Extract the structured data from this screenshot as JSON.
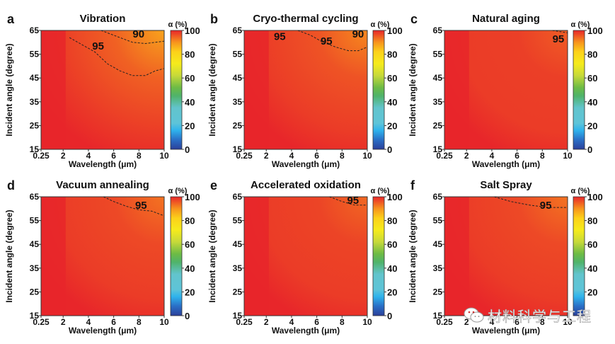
{
  "chart_data": [
    {
      "type": "heatmap",
      "panel_label": "a",
      "title": "Vibration",
      "xlabel": "Wavelength (μm)",
      "ylabel": "Incident angle (degree)",
      "xticks": [
        "0.25",
        "2",
        "4",
        "6",
        "8",
        "10"
      ],
      "yticks": [
        "15",
        "25",
        "35",
        "45",
        "55",
        "65"
      ],
      "xlim": [
        0.25,
        10
      ],
      "ylim": [
        15,
        65
      ],
      "colorbar": {
        "label": "α (%)",
        "ticks": [
          "0",
          "20",
          "40",
          "60",
          "80",
          "100"
        ],
        "range": [
          0,
          100
        ]
      },
      "contours": [
        {
          "level": 95,
          "label": "95",
          "points": [
            [
              2.5,
              62
            ],
            [
              3.5,
              59
            ],
            [
              4.5,
              56
            ],
            [
              5.5,
              51
            ],
            [
              6.5,
              48
            ],
            [
              7.5,
              46
            ],
            [
              8.5,
              46
            ],
            [
              9.3,
              48
            ],
            [
              10,
              49
            ]
          ]
        },
        {
          "level": 90,
          "label": "90",
          "points": [
            [
              5,
              65
            ],
            [
              6.5,
              62
            ],
            [
              7.5,
              60
            ],
            [
              8.5,
              59.5
            ],
            [
              9.3,
              60
            ],
            [
              10,
              60.5
            ]
          ]
        }
      ],
      "labels_at": {
        "95": [
          4.3,
          57
        ],
        "90": [
          7.5,
          62
        ]
      },
      "min_alpha_top_right": 88
    },
    {
      "type": "heatmap",
      "panel_label": "b",
      "title": "Cryo-thermal cycling",
      "xlabel": "Wavelength (μm)",
      "ylabel": "Incident angle (degree)",
      "xticks": [
        "0.25",
        "2",
        "4",
        "6",
        "8",
        "10"
      ],
      "yticks": [
        "15",
        "25",
        "35",
        "45",
        "55",
        "65"
      ],
      "xlim": [
        0.25,
        10
      ],
      "ylim": [
        15,
        65
      ],
      "colorbar": {
        "label": "α (%)",
        "ticks": [
          "0",
          "20",
          "40",
          "60",
          "80",
          "100"
        ],
        "range": [
          0,
          100
        ]
      },
      "contours": [
        {
          "level": 95,
          "label": "95",
          "points": [
            [
              4.5,
              65
            ],
            [
              5.5,
              63
            ],
            [
              6.5,
              60
            ],
            [
              7.5,
              58
            ],
            [
              8.5,
              56.5
            ],
            [
              9.3,
              56.5
            ],
            [
              10,
              58
            ]
          ]
        }
      ],
      "labels_at": {
        "95a": [
          2.6,
          61
        ],
        "95b": [
          6.3,
          59
        ],
        "90": [
          8.8,
          62
        ]
      },
      "label_texts": {
        "95a": "95",
        "95b": "95",
        "90": "90"
      },
      "min_alpha_top_right": 91
    },
    {
      "type": "heatmap",
      "panel_label": "c",
      "title": "Natural aging",
      "xlabel": "Wavelength (μm)",
      "ylabel": "Incident angle (degree)",
      "xticks": [
        "0.25",
        "2",
        "4",
        "6",
        "8",
        "10"
      ],
      "yticks": [
        "15",
        "25",
        "35",
        "45",
        "55",
        "65"
      ],
      "xlim": [
        0.25,
        10
      ],
      "ylim": [
        15,
        65
      ],
      "colorbar": {
        "label": "α (%)",
        "ticks": [
          "0",
          "20",
          "40",
          "60",
          "80",
          "100"
        ],
        "range": [
          0,
          100
        ]
      },
      "contours": [
        {
          "level": 95,
          "label": "95",
          "points": [
            [
              8.8,
              65
            ],
            [
              9.4,
              64.5
            ],
            [
              10,
              64
            ]
          ]
        }
      ],
      "labels_at": {
        "95": [
          8.8,
          60
        ]
      },
      "min_alpha_top_right": 95
    },
    {
      "type": "heatmap",
      "panel_label": "d",
      "title": "Vacuum annealing",
      "xlabel": "Wavelength (μm)",
      "ylabel": "Incident angle (degree)",
      "xticks": [
        "0.25",
        "2",
        "4",
        "6",
        "8",
        "10"
      ],
      "yticks": [
        "15",
        "25",
        "35",
        "45",
        "55",
        "65"
      ],
      "xlim": [
        0.25,
        10
      ],
      "ylim": [
        15,
        65
      ],
      "colorbar": {
        "label": "α (%)",
        "ticks": [
          "0",
          "20",
          "40",
          "60",
          "80",
          "100"
        ],
        "range": [
          0,
          100
        ]
      },
      "contours": [
        {
          "level": 95,
          "label": "95",
          "points": [
            [
              5.2,
              65
            ],
            [
              6,
              63
            ],
            [
              7,
              61
            ],
            [
              8,
              59.5
            ],
            [
              9,
              59
            ],
            [
              10,
              57
            ]
          ]
        }
      ],
      "labels_at": {
        "95": [
          7.7,
          60
        ]
      },
      "min_alpha_top_right": 93
    },
    {
      "type": "heatmap",
      "panel_label": "e",
      "title": "Accelerated oxidation",
      "xlabel": "Wavelength (μm)",
      "ylabel": "Incident angle (degree)",
      "xticks": [
        "0.25",
        "2",
        "4",
        "6",
        "8",
        "10"
      ],
      "yticks": [
        "15",
        "25",
        "35",
        "45",
        "55",
        "65"
      ],
      "xlim": [
        0.25,
        10
      ],
      "ylim": [
        15,
        65
      ],
      "colorbar": {
        "label": "α (%)",
        "ticks": [
          "0",
          "20",
          "40",
          "60",
          "80",
          "100"
        ],
        "range": [
          0,
          100
        ]
      },
      "contours": [
        {
          "level": 95,
          "label": "95",
          "points": [
            [
              7,
              65
            ],
            [
              8,
              63
            ],
            [
              9,
              61.5
            ],
            [
              10,
              61.5
            ]
          ]
        }
      ],
      "labels_at": {
        "95": [
          8.4,
          62
        ]
      },
      "min_alpha_top_right": 94
    },
    {
      "type": "heatmap",
      "panel_label": "f",
      "title": "Salt Spray",
      "xlabel": "Wavelength (μm)",
      "ylabel": "Incident angle (degree)",
      "xticks": [
        "0.25",
        "2",
        "4",
        "6",
        "8",
        "10"
      ],
      "yticks": [
        "15",
        "25",
        "35",
        "45",
        "55",
        "65"
      ],
      "xlim": [
        0.25,
        10
      ],
      "ylim": [
        15,
        65
      ],
      "colorbar": {
        "label": "α (%)",
        "ticks": [
          "20",
          "40",
          "60",
          "80",
          "100"
        ],
        "range": [
          0,
          100
        ]
      },
      "contours": [
        {
          "level": 95,
          "label": "95",
          "points": [
            [
              4.2,
              65
            ],
            [
              5.5,
              63
            ],
            [
              7,
              61.5
            ],
            [
              8.5,
              60.5
            ],
            [
              10,
              60.5
            ]
          ]
        }
      ],
      "labels_at": {
        "95": [
          7.8,
          60
        ]
      },
      "min_alpha_top_right": 93
    }
  ],
  "watermark": {
    "icon": "wechat-icon",
    "text": "材料科学与工程"
  }
}
